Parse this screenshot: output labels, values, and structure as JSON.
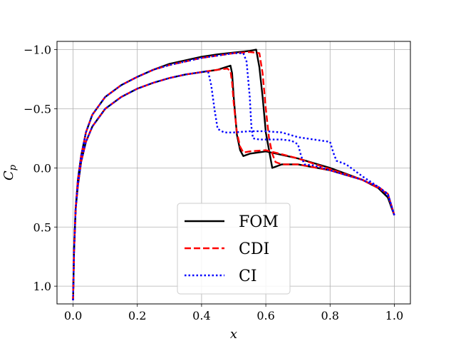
{
  "chart_data": {
    "type": "line",
    "title": "",
    "xlabel": "x",
    "ylabel": "C_p",
    "xlim": [
      -0.05,
      1.05
    ],
    "ylim": [
      1.15,
      -1.07
    ],
    "y_inverted": true,
    "grid": true,
    "legend_position": "lower-center",
    "x_ticks": [
      "0.0",
      "0.2",
      "0.4",
      "0.6",
      "0.8",
      "1.0"
    ],
    "y_ticks": [
      "−1.0",
      "−0.5",
      "0.0",
      "0.5",
      "1.0"
    ],
    "series": [
      {
        "name": "FOM",
        "color": "#000000",
        "dash": "solid",
        "upper": {
          "x": [
            0.0,
            0.003,
            0.008,
            0.015,
            0.025,
            0.04,
            0.06,
            0.1,
            0.15,
            0.2,
            0.25,
            0.3,
            0.35,
            0.4,
            0.45,
            0.49,
            0.495,
            0.5,
            0.51,
            0.52,
            0.53,
            0.55,
            0.6,
            0.7,
            0.8,
            0.9,
            0.95,
            0.98,
            1.0
          ],
          "y": [
            1.12,
            0.7,
            0.35,
            0.15,
            -0.05,
            -0.22,
            -0.35,
            -0.5,
            -0.6,
            -0.67,
            -0.72,
            -0.76,
            -0.79,
            -0.81,
            -0.83,
            -0.865,
            -0.8,
            -0.6,
            -0.28,
            -0.15,
            -0.1,
            -0.12,
            -0.14,
            -0.08,
            0.0,
            0.1,
            0.17,
            0.25,
            0.4
          ]
        },
        "lower": {
          "x": [
            0.0,
            0.003,
            0.008,
            0.015,
            0.025,
            0.04,
            0.06,
            0.1,
            0.15,
            0.2,
            0.25,
            0.3,
            0.35,
            0.4,
            0.45,
            0.5,
            0.55,
            0.57,
            0.58,
            0.59,
            0.6,
            0.61,
            0.62,
            0.65,
            0.7,
            0.8,
            0.9,
            0.95,
            0.98,
            1.0
          ],
          "y": [
            1.12,
            0.7,
            0.35,
            0.1,
            -0.1,
            -0.3,
            -0.45,
            -0.6,
            -0.7,
            -0.77,
            -0.83,
            -0.88,
            -0.91,
            -0.94,
            -0.96,
            -0.975,
            -0.99,
            -1.0,
            -0.85,
            -0.6,
            -0.3,
            -0.15,
            0.0,
            -0.03,
            -0.03,
            0.02,
            0.1,
            0.17,
            0.25,
            0.4
          ]
        }
      },
      {
        "name": "CDI",
        "color": "#ff0000",
        "dash": "dashed",
        "upper": {
          "x": [
            0.0,
            0.003,
            0.008,
            0.015,
            0.025,
            0.04,
            0.06,
            0.1,
            0.15,
            0.2,
            0.25,
            0.3,
            0.35,
            0.4,
            0.45,
            0.48,
            0.49,
            0.495,
            0.5,
            0.51,
            0.52,
            0.53,
            0.55,
            0.6,
            0.7,
            0.8,
            0.9,
            0.95,
            0.98,
            1.0
          ],
          "y": [
            1.12,
            0.7,
            0.35,
            0.15,
            -0.05,
            -0.22,
            -0.35,
            -0.5,
            -0.6,
            -0.67,
            -0.72,
            -0.76,
            -0.79,
            -0.81,
            -0.83,
            -0.84,
            -0.82,
            -0.72,
            -0.55,
            -0.3,
            -0.18,
            -0.13,
            -0.14,
            -0.15,
            -0.08,
            0.01,
            0.1,
            0.16,
            0.22,
            0.4
          ]
        },
        "lower": {
          "x": [
            0.0,
            0.003,
            0.008,
            0.015,
            0.025,
            0.04,
            0.06,
            0.1,
            0.15,
            0.2,
            0.25,
            0.3,
            0.35,
            0.4,
            0.45,
            0.5,
            0.55,
            0.58,
            0.59,
            0.6,
            0.61,
            0.62,
            0.63,
            0.65,
            0.7,
            0.8,
            0.9,
            0.95,
            0.98,
            1.0
          ],
          "y": [
            1.12,
            0.7,
            0.35,
            0.1,
            -0.1,
            -0.3,
            -0.45,
            -0.6,
            -0.7,
            -0.77,
            -0.83,
            -0.87,
            -0.9,
            -0.93,
            -0.95,
            -0.97,
            -0.98,
            -0.97,
            -0.8,
            -0.5,
            -0.25,
            -0.12,
            -0.05,
            -0.03,
            -0.03,
            0.02,
            0.1,
            0.17,
            0.22,
            0.4
          ]
        }
      },
      {
        "name": "CI",
        "color": "#0000ff",
        "dash": "dotted",
        "upper": {
          "x": [
            0.0,
            0.003,
            0.008,
            0.015,
            0.025,
            0.04,
            0.06,
            0.1,
            0.15,
            0.2,
            0.25,
            0.3,
            0.35,
            0.4,
            0.42,
            0.43,
            0.44,
            0.45,
            0.47,
            0.5,
            0.55,
            0.6,
            0.65,
            0.7,
            0.75,
            0.8,
            0.81,
            0.82,
            0.85,
            0.9,
            0.95,
            0.98,
            1.0
          ],
          "y": [
            1.12,
            0.7,
            0.35,
            0.15,
            -0.05,
            -0.22,
            -0.35,
            -0.5,
            -0.6,
            -0.67,
            -0.72,
            -0.76,
            -0.79,
            -0.81,
            -0.82,
            -0.7,
            -0.5,
            -0.33,
            -0.3,
            -0.3,
            -0.31,
            -0.31,
            -0.3,
            -0.26,
            -0.24,
            -0.22,
            -0.13,
            -0.06,
            -0.03,
            0.07,
            0.16,
            0.23,
            0.4
          ]
        },
        "lower": {
          "x": [
            0.0,
            0.003,
            0.008,
            0.015,
            0.025,
            0.04,
            0.06,
            0.1,
            0.15,
            0.2,
            0.25,
            0.3,
            0.35,
            0.4,
            0.45,
            0.5,
            0.53,
            0.54,
            0.55,
            0.555,
            0.56,
            0.58,
            0.6,
            0.65,
            0.68,
            0.7,
            0.71,
            0.72,
            0.75,
            0.8,
            0.9,
            0.95,
            0.98,
            1.0
          ],
          "y": [
            1.12,
            0.7,
            0.35,
            0.1,
            -0.1,
            -0.3,
            -0.45,
            -0.6,
            -0.7,
            -0.77,
            -0.83,
            -0.87,
            -0.9,
            -0.93,
            -0.95,
            -0.97,
            -0.97,
            -0.9,
            -0.6,
            -0.35,
            -0.25,
            -0.24,
            -0.24,
            -0.24,
            -0.23,
            -0.2,
            -0.1,
            -0.03,
            -0.02,
            0.02,
            0.1,
            0.16,
            0.22,
            0.4
          ]
        }
      }
    ]
  }
}
